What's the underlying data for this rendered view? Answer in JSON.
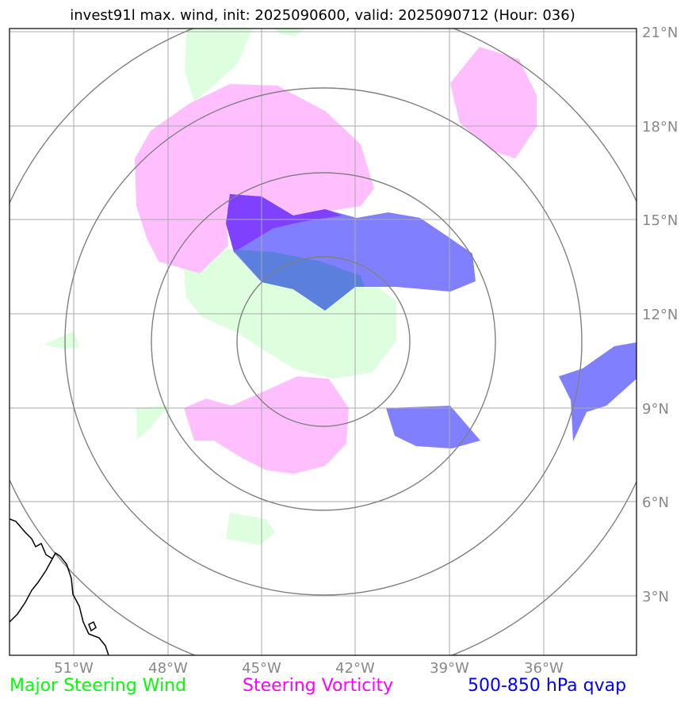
{
  "title": "invest91l max. wind, init: 2025090600, valid: 2025090712 (Hour: 036)",
  "lon_labels": [
    "51°W",
    "48°W",
    "45°W",
    "42°W",
    "39°W",
    "36°W"
  ],
  "lat_labels": [
    "21°N",
    "18°N",
    "15°N",
    "12°N",
    "9°N",
    "6°N",
    "3°N"
  ],
  "legend": [
    {
      "label": "Major Steering Wind",
      "color": "#00ff00"
    },
    {
      "label": "Steering Vorticity",
      "color": "#ff00ff"
    },
    {
      "label": "500-850 hPa qvap",
      "color": "#0000ff"
    }
  ],
  "colors": {
    "steering_wind_fill": "#ddffdd",
    "vorticity_fill": "#ffbfff",
    "qvap_fill": "#8080ff",
    "qvap_dark": "#8040ff",
    "overlap_fill": "#5b7fdd",
    "gridline": "#aaaaaa",
    "range_ring": "#808080",
    "coastline": "#000000"
  }
}
